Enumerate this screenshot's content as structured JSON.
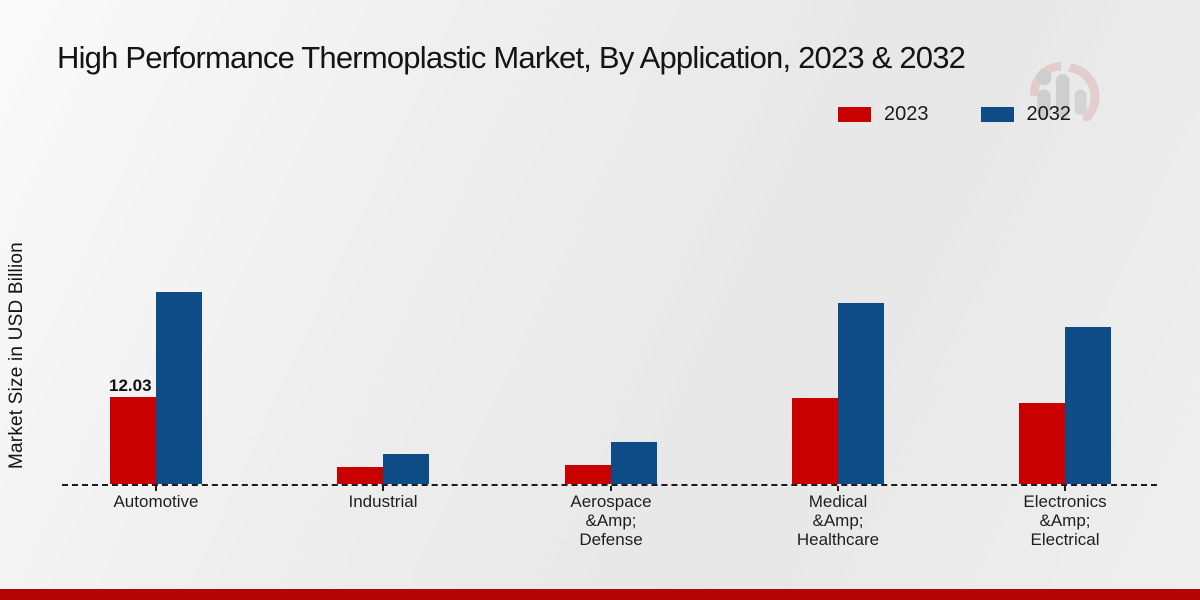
{
  "title": "High Performance Thermoplastic Market, By Application, 2023 & 2032",
  "y_axis_label": "Market Size in USD Billion",
  "legend": {
    "items": [
      {
        "label": "2023",
        "color": "#c80000"
      },
      {
        "label": "2032",
        "color": "#0e4c87"
      }
    ]
  },
  "colors": {
    "series_2023": "#c80000",
    "series_2032": "#0e4c87",
    "baseline": "#1c1c1c",
    "footer_band": "#b40404",
    "watermark_gray": "#b9b9b9",
    "watermark_red": "#d48a8a"
  },
  "footer": {
    "band_color": "#b40404"
  },
  "watermark_icon": "mrfr-bar-person-logo",
  "chart_data": {
    "type": "bar",
    "title": "High Performance Thermoplastic Market, By Application, 2023 & 2032",
    "xlabel": "",
    "ylabel": "Market Size in USD Billion",
    "categories": [
      "Automotive",
      "Industrial",
      "Aerospace &Amp; Defense",
      "Medical &Amp; Healthcare",
      "Electronics &Amp; Electrical"
    ],
    "category_label_lines": [
      [
        "Automotive"
      ],
      [
        "Industrial"
      ],
      [
        "Aerospace",
        "&Amp;",
        "Defense"
      ],
      [
        "Medical",
        "&Amp;",
        "Healthcare"
      ],
      [
        "Electronics",
        "&Amp;",
        "Electrical"
      ]
    ],
    "series": [
      {
        "name": "2023",
        "color": "#c80000",
        "values": [
          12.03,
          2.3,
          2.6,
          11.9,
          11.2
        ]
      },
      {
        "name": "2032",
        "color": "#0e4c87",
        "values": [
          26.7,
          4.1,
          5.9,
          25.2,
          21.8
        ]
      }
    ],
    "data_labels": [
      {
        "series": "2023",
        "category_index": 0,
        "text": "12.03"
      }
    ],
    "ylim": [
      0,
      30
    ],
    "grid": false,
    "baseline_style": "dashed",
    "legend_position": "top-right"
  }
}
